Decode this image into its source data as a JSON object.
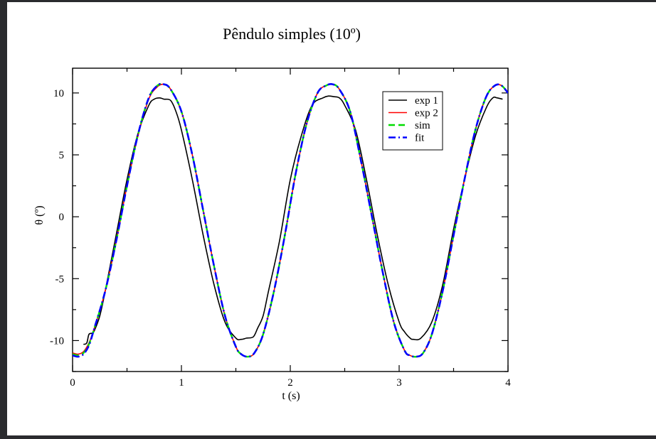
{
  "chart_data": {
    "type": "line",
    "title": "Pêndulo simples (10º)",
    "xlabel": "t (s)",
    "ylabel": "θ (º)",
    "xlim": [
      0,
      4
    ],
    "ylim": [
      -12.5,
      12
    ],
    "xticks": [
      0,
      1,
      2,
      3,
      4
    ],
    "yticks": [
      -10,
      -5,
      0,
      5,
      10
    ],
    "xtick_labels": [
      "0",
      "1",
      "2",
      "3",
      "4"
    ],
    "ytick_labels": [
      "-10",
      "-5",
      "0",
      "5",
      "10"
    ],
    "grid": false,
    "legend": "top-right",
    "series": [
      {
        "name": "exp 1",
        "color": "#000000",
        "style": "solid",
        "x": [
          0.1,
          0.13,
          0.15,
          0.18,
          0.2,
          0.25,
          0.3,
          0.4,
          0.5,
          0.6,
          0.7,
          0.75,
          0.8,
          0.84,
          0.9,
          0.95,
          1.0,
          1.1,
          1.2,
          1.3,
          1.4,
          1.5,
          1.55,
          1.6,
          1.66,
          1.7,
          1.75,
          1.8,
          1.9,
          2.0,
          2.1,
          2.2,
          2.3,
          2.35,
          2.4,
          2.45,
          2.5,
          2.6,
          2.7,
          2.8,
          2.9,
          3.0,
          3.05,
          3.1,
          3.13,
          3.2,
          3.3,
          3.4,
          3.5,
          3.6,
          3.7,
          3.8,
          3.86,
          3.9,
          3.95
        ],
        "values": [
          -10.3,
          -10.2,
          -9.5,
          -9.4,
          -9.2,
          -8.0,
          -6.0,
          -1.5,
          3.0,
          6.7,
          9.0,
          9.5,
          9.6,
          9.5,
          9.4,
          8.5,
          7.0,
          3.0,
          -1.5,
          -5.5,
          -8.5,
          -9.8,
          -9.9,
          -9.8,
          -9.7,
          -9.0,
          -8.0,
          -6.0,
          -2.0,
          3.0,
          6.5,
          9.0,
          9.6,
          9.75,
          9.7,
          9.6,
          9.0,
          7.0,
          3.0,
          -1.5,
          -5.5,
          -8.5,
          -9.3,
          -9.8,
          -9.9,
          -9.8,
          -8.5,
          -5.5,
          -1.0,
          3.0,
          6.5,
          8.8,
          9.6,
          9.6,
          9.5
        ]
      },
      {
        "name": "exp 2",
        "color": "#ff0000",
        "style": "solid",
        "x": [
          0.0,
          0.05,
          0.1,
          0.15,
          0.2,
          0.3,
          0.4,
          0.5,
          0.6,
          0.7,
          0.78,
          0.84,
          0.9,
          1.0,
          1.1,
          1.2,
          1.3,
          1.4,
          1.5,
          1.55,
          1.61,
          1.67,
          1.75,
          1.85,
          1.95,
          2.05,
          2.15,
          2.25,
          2.33,
          2.39,
          2.45,
          2.55,
          2.65,
          2.75,
          2.85,
          2.95,
          3.05,
          3.1,
          3.16,
          3.22,
          3.3,
          3.4,
          3.5,
          3.6,
          3.7,
          3.8,
          3.88,
          3.94,
          4.0
        ],
        "values": [
          -11.0,
          -11.1,
          -10.9,
          -10.2,
          -9.0,
          -6.0,
          -2.0,
          2.5,
          6.5,
          9.5,
          10.5,
          10.7,
          10.3,
          8.5,
          5.0,
          0.5,
          -4.0,
          -8.0,
          -10.5,
          -11.1,
          -11.3,
          -11.0,
          -9.5,
          -6.0,
          -1.5,
          3.5,
          7.5,
          10.0,
          10.6,
          10.7,
          10.3,
          8.5,
          4.5,
          0.0,
          -4.5,
          -8.5,
          -10.8,
          -11.2,
          -11.3,
          -11.0,
          -9.5,
          -6.0,
          -1.5,
          3.0,
          7.0,
          9.7,
          10.6,
          10.6,
          10.0
        ]
      },
      {
        "name": "sim",
        "color": "#00dd00",
        "style": "dashed",
        "x": [
          0.0,
          0.05,
          0.1,
          0.15,
          0.2,
          0.3,
          0.4,
          0.5,
          0.6,
          0.7,
          0.78,
          0.84,
          0.9,
          1.0,
          1.1,
          1.2,
          1.3,
          1.4,
          1.5,
          1.55,
          1.61,
          1.67,
          1.75,
          1.85,
          1.95,
          2.05,
          2.15,
          2.25,
          2.33,
          2.39,
          2.45,
          2.55,
          2.65,
          2.75,
          2.85,
          2.95,
          3.05,
          3.1,
          3.16,
          3.22,
          3.3,
          3.4,
          3.5,
          3.6,
          3.7,
          3.8,
          3.88,
          3.94,
          4.0
        ],
        "values": [
          -11.1,
          -11.2,
          -11.0,
          -10.3,
          -9.0,
          -6.0,
          -2.0,
          2.5,
          6.6,
          9.6,
          10.6,
          10.7,
          10.3,
          8.5,
          5.0,
          0.5,
          -4.0,
          -8.0,
          -10.5,
          -11.1,
          -11.3,
          -11.0,
          -9.5,
          -6.0,
          -1.5,
          3.5,
          7.5,
          10.0,
          10.6,
          10.7,
          10.3,
          8.5,
          4.5,
          0.0,
          -4.5,
          -8.5,
          -10.8,
          -11.2,
          -11.3,
          -11.0,
          -9.5,
          -6.0,
          -1.5,
          3.0,
          7.0,
          9.7,
          10.6,
          10.6,
          10.0
        ]
      },
      {
        "name": "fit",
        "color": "#0000ff",
        "style": "dashdot",
        "x": [
          0.0,
          0.05,
          0.1,
          0.15,
          0.2,
          0.3,
          0.4,
          0.5,
          0.6,
          0.7,
          0.78,
          0.84,
          0.9,
          1.0,
          1.1,
          1.2,
          1.3,
          1.4,
          1.5,
          1.55,
          1.61,
          1.67,
          1.75,
          1.85,
          1.95,
          2.05,
          2.15,
          2.25,
          2.33,
          2.39,
          2.45,
          2.55,
          2.65,
          2.75,
          2.85,
          2.95,
          3.05,
          3.1,
          3.16,
          3.22,
          3.3,
          3.4,
          3.5,
          3.6,
          3.7,
          3.8,
          3.88,
          3.94,
          4.0
        ],
        "values": [
          -11.2,
          -11.3,
          -11.1,
          -10.4,
          -9.0,
          -6.0,
          -2.0,
          2.5,
          6.6,
          9.6,
          10.6,
          10.7,
          10.3,
          8.5,
          5.0,
          0.5,
          -4.0,
          -8.0,
          -10.5,
          -11.1,
          -11.3,
          -11.0,
          -9.5,
          -6.0,
          -1.5,
          3.5,
          7.5,
          10.0,
          10.6,
          10.7,
          10.3,
          8.5,
          4.5,
          0.0,
          -4.5,
          -8.5,
          -10.8,
          -11.2,
          -11.3,
          -11.0,
          -9.5,
          -6.0,
          -1.5,
          3.0,
          7.0,
          9.7,
          10.6,
          10.6,
          10.0
        ]
      }
    ]
  }
}
